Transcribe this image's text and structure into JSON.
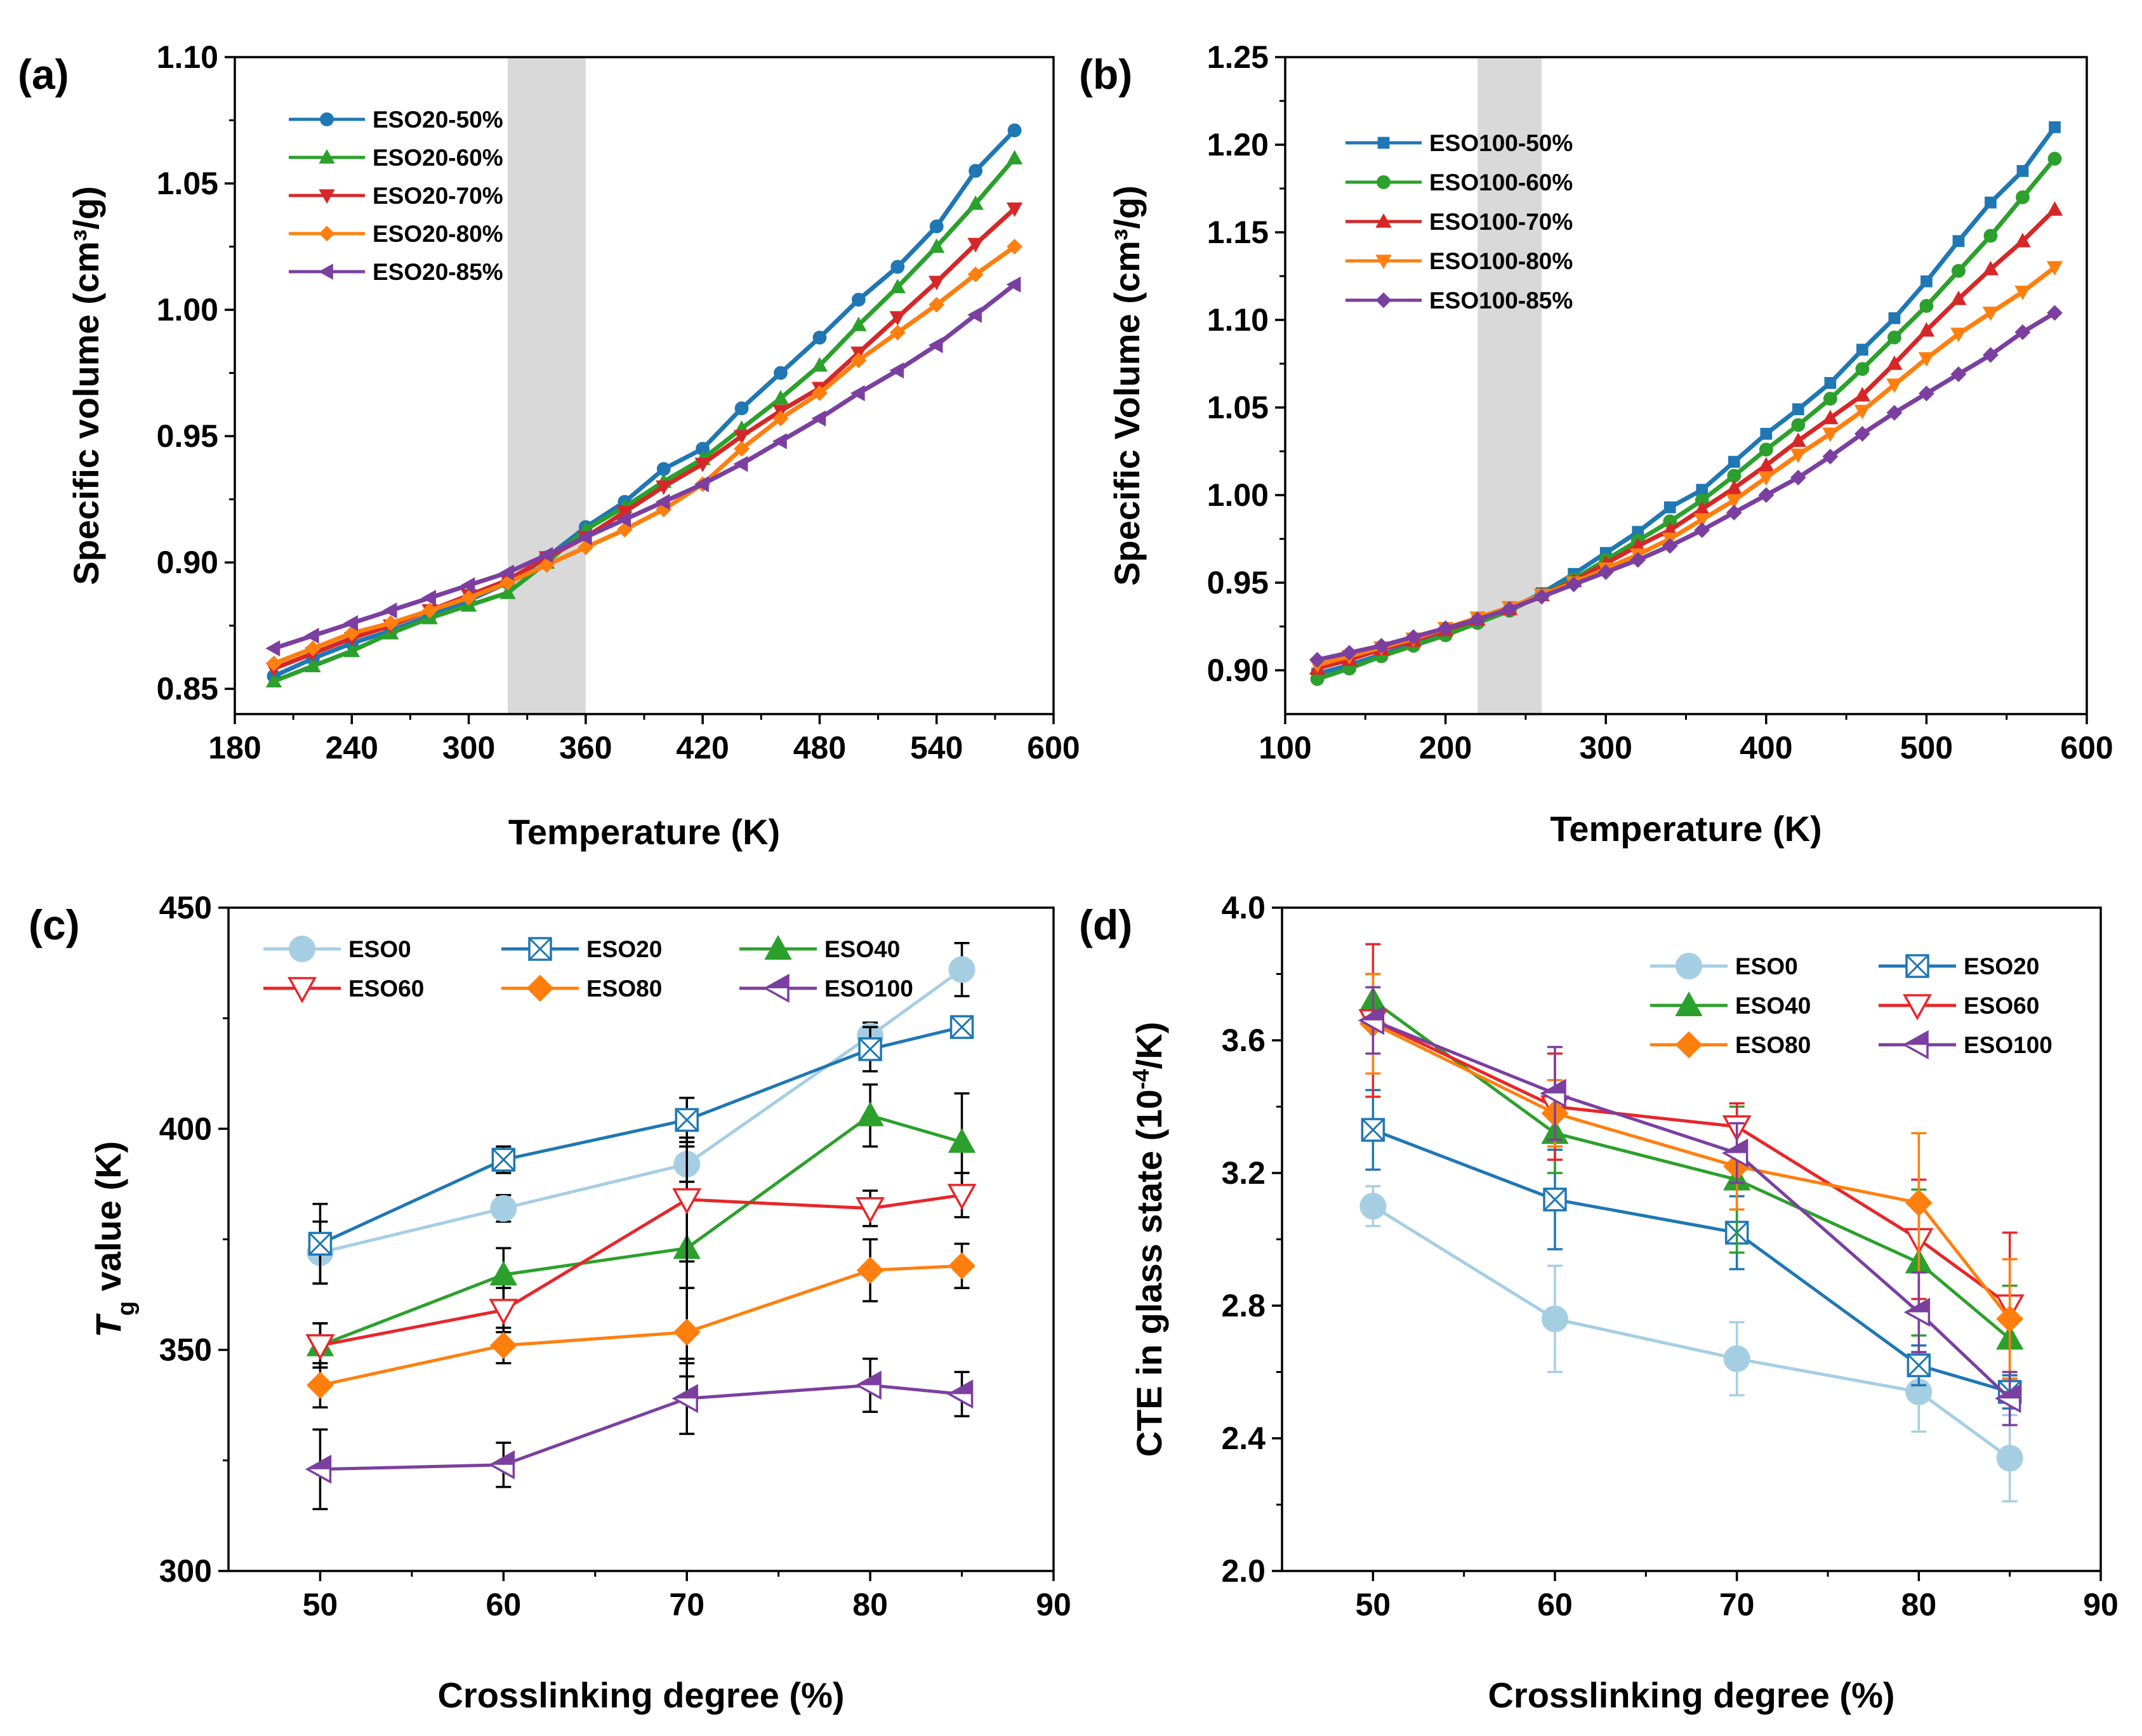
{
  "chart_data": [
    {
      "panel": "(a)",
      "type": "line",
      "xlabel": "Temperature (K)",
      "ylabel": "Specific volume (cm³/g)",
      "xlim": [
        180,
        600
      ],
      "ylim": [
        0.84,
        1.1
      ],
      "xticks": [
        180,
        240,
        300,
        360,
        420,
        480,
        540,
        600
      ],
      "yticks": [
        0.85,
        0.9,
        0.95,
        1.0,
        1.05,
        1.1
      ],
      "xtick_labels": [
        "180",
        "240",
        "300",
        "360",
        "420",
        "480",
        "540",
        "600"
      ],
      "ytick_labels": [
        "0.85",
        "0.90",
        "0.95",
        "1.00",
        "1.05",
        "1.10"
      ],
      "shaded_region": [
        320,
        360
      ],
      "legend_position": "top-left",
      "x": [
        200,
        220,
        240,
        260,
        280,
        300,
        320,
        340,
        360,
        380,
        400,
        420,
        440,
        460,
        480,
        500,
        520,
        540,
        560,
        580
      ],
      "series": [
        {
          "name": "ESO20-50%",
          "color": "#1f77b4",
          "marker": "circle",
          "values": [
            0.855,
            0.862,
            0.868,
            0.873,
            0.879,
            0.885,
            0.892,
            0.902,
            0.914,
            0.924,
            0.937,
            0.945,
            0.961,
            0.975,
            0.989,
            1.004,
            1.017,
            1.033,
            1.055,
            1.071
          ]
        },
        {
          "name": "ESO20-60%",
          "color": "#2ca02c",
          "marker": "triangle-up",
          "values": [
            0.853,
            0.859,
            0.865,
            0.872,
            0.878,
            0.883,
            0.888,
            0.9,
            0.913,
            0.922,
            0.932,
            0.941,
            0.953,
            0.965,
            0.978,
            0.994,
            1.009,
            1.025,
            1.042,
            1.06
          ]
        },
        {
          "name": "ESO20-70%",
          "color": "#d62728",
          "marker": "triangle-down",
          "values": [
            0.858,
            0.864,
            0.87,
            0.875,
            0.881,
            0.887,
            0.893,
            0.902,
            0.91,
            0.92,
            0.93,
            0.939,
            0.95,
            0.96,
            0.969,
            0.983,
            0.997,
            1.011,
            1.026,
            1.04
          ]
        },
        {
          "name": "ESO20-80%",
          "color": "#ff7f0e",
          "marker": "diamond",
          "values": [
            0.86,
            0.866,
            0.872,
            0.876,
            0.881,
            0.886,
            0.892,
            0.899,
            0.906,
            0.913,
            0.921,
            0.931,
            0.945,
            0.957,
            0.967,
            0.98,
            0.991,
            1.002,
            1.014,
            1.025
          ]
        },
        {
          "name": "ESO20-85%",
          "color": "#7b3fa0",
          "marker": "triangle-left",
          "values": [
            0.866,
            0.871,
            0.876,
            0.881,
            0.886,
            0.891,
            0.896,
            0.903,
            0.91,
            0.917,
            0.924,
            0.931,
            0.939,
            0.948,
            0.957,
            0.967,
            0.976,
            0.986,
            0.998,
            1.01
          ]
        }
      ]
    },
    {
      "panel": "(b)",
      "type": "line",
      "xlabel": "Temperature (K)",
      "ylabel": "Specific Volume (cm³/g)",
      "xlim": [
        100,
        600
      ],
      "ylim": [
        0.875,
        1.25
      ],
      "xticks": [
        100,
        200,
        300,
        400,
        500,
        600
      ],
      "yticks": [
        0.9,
        0.95,
        1.0,
        1.05,
        1.1,
        1.15,
        1.2,
        1.25
      ],
      "xtick_labels": [
        "100",
        "200",
        "300",
        "400",
        "500",
        "600"
      ],
      "ytick_labels": [
        "0.90",
        "0.95",
        "1.00",
        "1.05",
        "1.10",
        "1.15",
        "1.20",
        "1.25"
      ],
      "shaded_region": [
        220,
        260
      ],
      "legend_position": "top-left",
      "x": [
        120,
        140,
        160,
        180,
        200,
        220,
        240,
        260,
        280,
        300,
        320,
        340,
        360,
        380,
        400,
        420,
        440,
        460,
        480,
        500,
        520,
        540,
        560,
        580
      ],
      "series": [
        {
          "name": "ESO100-50%",
          "color": "#1f77b4",
          "marker": "square",
          "values": [
            0.898,
            0.903,
            0.909,
            0.915,
            0.921,
            0.928,
            0.935,
            0.944,
            0.955,
            0.967,
            0.979,
            0.993,
            1.003,
            1.019,
            1.035,
            1.049,
            1.064,
            1.083,
            1.101,
            1.122,
            1.145,
            1.167,
            1.185,
            1.21
          ]
        },
        {
          "name": "ESO100-60%",
          "color": "#2ca02c",
          "marker": "circle",
          "values": [
            0.895,
            0.901,
            0.908,
            0.914,
            0.92,
            0.927,
            0.934,
            0.943,
            0.952,
            0.963,
            0.974,
            0.985,
            0.997,
            1.011,
            1.026,
            1.04,
            1.055,
            1.072,
            1.09,
            1.108,
            1.128,
            1.148,
            1.17,
            1.192
          ]
        },
        {
          "name": "ESO100-70%",
          "color": "#d62728",
          "marker": "triangle-up",
          "values": [
            0.901,
            0.906,
            0.912,
            0.917,
            0.923,
            0.929,
            0.935,
            0.943,
            0.951,
            0.961,
            0.971,
            0.98,
            0.992,
            1.004,
            1.017,
            1.031,
            1.044,
            1.057,
            1.075,
            1.094,
            1.112,
            1.129,
            1.145,
            1.163
          ]
        },
        {
          "name": "ESO100-80%",
          "color": "#ff7f0e",
          "marker": "triangle-down",
          "values": [
            0.903,
            0.908,
            0.913,
            0.918,
            0.924,
            0.93,
            0.936,
            0.943,
            0.95,
            0.958,
            0.966,
            0.975,
            0.986,
            0.997,
            1.01,
            1.023,
            1.035,
            1.048,
            1.063,
            1.078,
            1.092,
            1.104,
            1.116,
            1.13
          ]
        },
        {
          "name": "ESO100-85%",
          "color": "#7b3fa0",
          "marker": "diamond",
          "values": [
            0.906,
            0.91,
            0.914,
            0.919,
            0.924,
            0.929,
            0.935,
            0.942,
            0.949,
            0.956,
            0.963,
            0.971,
            0.98,
            0.99,
            1.0,
            1.01,
            1.022,
            1.035,
            1.047,
            1.058,
            1.069,
            1.08,
            1.093,
            1.104
          ]
        }
      ]
    },
    {
      "panel": "(c)",
      "type": "line",
      "xlabel": "Crosslinking degree (%)",
      "ylabel_main": "T",
      "ylabel_sub": "g",
      "ylabel_rest": " value (K)",
      "xlim": [
        45,
        90
      ],
      "ylim": [
        300,
        450
      ],
      "xticks": [
        50,
        60,
        70,
        80,
        90
      ],
      "yticks": [
        300,
        350,
        400,
        450
      ],
      "xtick_labels": [
        "50",
        "60",
        "70",
        "80",
        "90"
      ],
      "ytick_labels": [
        "300",
        "350",
        "400",
        "450"
      ],
      "legend_position": "top-left",
      "x": [
        50,
        60,
        70,
        80,
        85
      ],
      "series": [
        {
          "name": "ESO0",
          "color": "#a6cee3",
          "marker": "circle-filled",
          "values": [
            372,
            382,
            392,
            421,
            436
          ],
          "errors": [
            7,
            3,
            4,
            3,
            6
          ]
        },
        {
          "name": "ESO20",
          "color": "#1f77b4",
          "marker": "square-x",
          "values": [
            374,
            393,
            402,
            418,
            423
          ],
          "errors": [
            9,
            3,
            5,
            5,
            2
          ]
        },
        {
          "name": "ESO40",
          "color": "#2ca02c",
          "marker": "triangle-up-filled",
          "values": [
            351,
            367,
            373,
            403,
            397
          ],
          "errors": [
            5,
            6,
            25,
            7,
            11
          ]
        },
        {
          "name": "ESO60",
          "color": "#e8262a",
          "marker": "triangle-down-open",
          "values": [
            351,
            359,
            384,
            382,
            385
          ],
          "errors": [
            5,
            5,
            14,
            4,
            5
          ]
        },
        {
          "name": "ESO80",
          "color": "#ff7f0e",
          "marker": "diamond-filled",
          "values": [
            342,
            351,
            354,
            368,
            369
          ],
          "errors": [
            5,
            4,
            10,
            7,
            5
          ]
        },
        {
          "name": "ESO100",
          "color": "#7b3fa0",
          "marker": "triangle-left-half",
          "values": [
            323,
            324,
            339,
            342,
            340
          ],
          "errors": [
            9,
            5,
            8,
            6,
            5
          ]
        }
      ]
    },
    {
      "panel": "(d)",
      "type": "line",
      "xlabel": "Crosslinking degree (%)",
      "ylabel_main": "CTE in glass state (10",
      "ylabel_sup": "-4",
      "ylabel_rest": "/K)",
      "xlim": [
        45,
        90
      ],
      "ylim": [
        2.0,
        4.0
      ],
      "xticks": [
        50,
        60,
        70,
        80,
        90
      ],
      "yticks": [
        2.0,
        2.4,
        2.8,
        3.2,
        3.6,
        4.0
      ],
      "xtick_labels": [
        "50",
        "60",
        "70",
        "80",
        "90"
      ],
      "ytick_labels": [
        "2.0",
        "2.4",
        "2.8",
        "3.2",
        "3.6",
        "4.0"
      ],
      "legend_position": "top-right",
      "x": [
        50,
        60,
        70,
        80,
        85
      ],
      "series": [
        {
          "name": "ESO0",
          "color": "#a6cee3",
          "marker": "circle-filled",
          "values": [
            3.1,
            2.76,
            2.64,
            2.54,
            2.34
          ],
          "errors": [
            0.06,
            0.16,
            0.11,
            0.12,
            0.13
          ]
        },
        {
          "name": "ESO20",
          "color": "#1f77b4",
          "marker": "square-x",
          "values": [
            3.33,
            3.12,
            3.02,
            2.62,
            2.54
          ],
          "errors": [
            0.12,
            0.15,
            0.11,
            0.06,
            0.05
          ]
        },
        {
          "name": "ESO40",
          "color": "#2ca02c",
          "marker": "triangle-up-filled",
          "values": [
            3.72,
            3.32,
            3.18,
            2.93,
            2.7
          ],
          "errors": [
            0.08,
            0.12,
            0.22,
            0.22,
            0.16
          ]
        },
        {
          "name": "ESO60",
          "color": "#e8262a",
          "marker": "triangle-down-open",
          "values": [
            3.66,
            3.4,
            3.34,
            3.0,
            2.8
          ],
          "errors": [
            0.23,
            0.16,
            0.07,
            0.18,
            0.22
          ]
        },
        {
          "name": "ESO80",
          "color": "#ff7f0e",
          "marker": "diamond-filled",
          "values": [
            3.65,
            3.38,
            3.22,
            3.11,
            2.76
          ],
          "errors": [
            0.15,
            0.1,
            0.13,
            0.21,
            0.18
          ]
        },
        {
          "name": "ESO100",
          "color": "#7b3fa0",
          "marker": "triangle-left-half",
          "values": [
            3.66,
            3.44,
            3.26,
            2.78,
            2.52
          ],
          "errors": [
            0.1,
            0.14,
            0.09,
            0.12,
            0.08
          ]
        }
      ]
    }
  ]
}
